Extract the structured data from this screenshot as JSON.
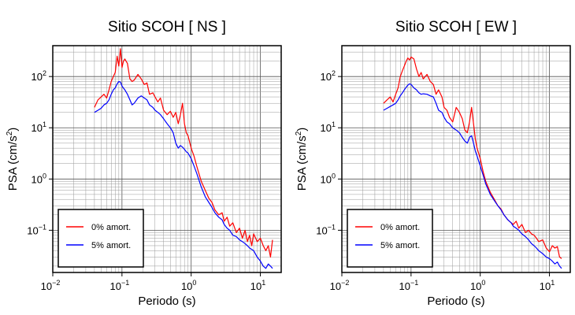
{
  "chart_data": [
    {
      "type": "line",
      "title": "Sitio SCOH [ NS ]",
      "xlabel": "Periodo (s)",
      "ylabel_main": "PSA (cm/s",
      "ylabel_sup": "2",
      "ylabel_tail": ")",
      "xscale": "log",
      "yscale": "log",
      "xlim": [
        0.01,
        20
      ],
      "ylim": [
        0.015,
        400
      ],
      "grid": true,
      "legend_position": "bottom-left",
      "x_ticks": [
        {
          "value": 0.01,
          "base": "10",
          "exp": "−2"
        },
        {
          "value": 0.1,
          "base": "10",
          "exp": "−1"
        },
        {
          "value": 1,
          "base": "10",
          "exp": "0"
        },
        {
          "value": 10,
          "base": "10",
          "exp": "1"
        }
      ],
      "y_ticks": [
        {
          "value": 0.1,
          "base": "10",
          "exp": "−1"
        },
        {
          "value": 1,
          "base": "10",
          "exp": "0"
        },
        {
          "value": 10,
          "base": "10",
          "exp": "1"
        },
        {
          "value": 100,
          "base": "10",
          "exp": "2"
        }
      ],
      "series": [
        {
          "name": "0% amort.",
          "color": "#ff0000",
          "x": [
            0.04,
            0.045,
            0.05,
            0.055,
            0.06,
            0.065,
            0.07,
            0.075,
            0.08,
            0.085,
            0.09,
            0.095,
            0.1,
            0.105,
            0.11,
            0.12,
            0.13,
            0.14,
            0.15,
            0.17,
            0.19,
            0.21,
            0.23,
            0.25,
            0.28,
            0.3,
            0.33,
            0.36,
            0.4,
            0.45,
            0.5,
            0.55,
            0.6,
            0.65,
            0.7,
            0.75,
            0.8,
            0.85,
            0.9,
            1.0,
            1.1,
            1.2,
            1.4,
            1.6,
            1.8,
            2.0,
            2.2,
            2.5,
            2.8,
            3.0,
            3.3,
            3.6,
            4.0,
            4.5,
            5.0,
            5.5,
            6.0,
            6.5,
            7.0,
            7.5,
            8.0,
            9.0,
            10.0,
            11.0,
            12.0,
            13.0,
            14.0,
            15.0
          ],
          "y": [
            25,
            35,
            40,
            45,
            38,
            55,
            80,
            100,
            120,
            250,
            160,
            350,
            150,
            200,
            220,
            180,
            90,
            80,
            85,
            110,
            90,
            70,
            75,
            45,
            48,
            40,
            32,
            38,
            22,
            18,
            21,
            16,
            20,
            12,
            18,
            30,
            12,
            8,
            7,
            4,
            2.8,
            1.8,
            0.9,
            0.6,
            0.42,
            0.35,
            0.25,
            0.2,
            0.22,
            0.15,
            0.18,
            0.12,
            0.14,
            0.09,
            0.11,
            0.07,
            0.1,
            0.06,
            0.08,
            0.05,
            0.085,
            0.06,
            0.07,
            0.05,
            0.04,
            0.05,
            0.03,
            0.065
          ]
        },
        {
          "name": "5% amort.",
          "color": "#0000ff",
          "x": [
            0.04,
            0.045,
            0.05,
            0.055,
            0.06,
            0.065,
            0.07,
            0.075,
            0.08,
            0.085,
            0.09,
            0.095,
            0.1,
            0.11,
            0.12,
            0.13,
            0.14,
            0.15,
            0.17,
            0.19,
            0.21,
            0.23,
            0.25,
            0.28,
            0.3,
            0.33,
            0.36,
            0.4,
            0.45,
            0.5,
            0.55,
            0.6,
            0.65,
            0.7,
            0.75,
            0.8,
            0.85,
            0.9,
            1.0,
            1.1,
            1.2,
            1.4,
            1.6,
            1.8,
            2.0,
            2.2,
            2.5,
            2.8,
            3.0,
            3.3,
            3.6,
            4.0,
            4.5,
            5.0,
            5.5,
            6.0,
            6.5,
            7.0,
            8.0,
            9.0,
            10.0,
            11.0,
            12.0,
            13.0,
            14.0,
            15.0
          ],
          "y": [
            20,
            22,
            24,
            28,
            30,
            35,
            45,
            55,
            60,
            72,
            80,
            78,
            65,
            55,
            45,
            35,
            28,
            30,
            38,
            42,
            38,
            35,
            28,
            25,
            22,
            20,
            18,
            15,
            12,
            10,
            8,
            5,
            4,
            4.5,
            4.2,
            3.8,
            3.4,
            3.2,
            2.5,
            1.8,
            1.3,
            0.7,
            0.45,
            0.35,
            0.28,
            0.22,
            0.18,
            0.16,
            0.13,
            0.11,
            0.1,
            0.08,
            0.075,
            0.065,
            0.06,
            0.055,
            0.05,
            0.045,
            0.04,
            0.03,
            0.025,
            0.02,
            0.018,
            0.022,
            0.02,
            0.018
          ]
        }
      ]
    },
    {
      "type": "line",
      "title": "Sitio SCOH [ EW ]",
      "xlabel": "Periodo (s)",
      "ylabel_main": "PSA (cm/s",
      "ylabel_sup": "2",
      "ylabel_tail": ")",
      "xscale": "log",
      "yscale": "log",
      "xlim": [
        0.01,
        20
      ],
      "ylim": [
        0.015,
        400
      ],
      "grid": true,
      "legend_position": "bottom-left",
      "x_ticks": [
        {
          "value": 0.01,
          "base": "10",
          "exp": "−2"
        },
        {
          "value": 0.1,
          "base": "10",
          "exp": "−1"
        },
        {
          "value": 1,
          "base": "10",
          "exp": "0"
        },
        {
          "value": 10,
          "base": "10",
          "exp": "1"
        }
      ],
      "y_ticks": [
        {
          "value": 0.1,
          "base": "10",
          "exp": "−1"
        },
        {
          "value": 1,
          "base": "10",
          "exp": "0"
        },
        {
          "value": 10,
          "base": "10",
          "exp": "1"
        },
        {
          "value": 100,
          "base": "10",
          "exp": "2"
        }
      ],
      "series": [
        {
          "name": "0% amort.",
          "color": "#ff0000",
          "x": [
            0.04,
            0.045,
            0.05,
            0.055,
            0.06,
            0.065,
            0.07,
            0.075,
            0.08,
            0.085,
            0.09,
            0.095,
            0.1,
            0.11,
            0.12,
            0.13,
            0.14,
            0.15,
            0.17,
            0.19,
            0.21,
            0.23,
            0.25,
            0.28,
            0.3,
            0.33,
            0.36,
            0.4,
            0.45,
            0.5,
            0.55,
            0.6,
            0.65,
            0.7,
            0.75,
            0.8,
            0.85,
            0.9,
            1.0,
            1.1,
            1.2,
            1.4,
            1.6,
            1.8,
            2.0,
            2.2,
            2.5,
            2.8,
            3.0,
            3.3,
            3.6,
            4.0,
            4.5,
            5.0,
            5.5,
            6.0,
            6.5,
            7.0,
            8.0,
            9.0,
            10.0,
            11.0,
            12.0,
            13.0,
            14.0,
            15.0
          ],
          "y": [
            30,
            35,
            40,
            32,
            45,
            60,
            100,
            130,
            160,
            200,
            230,
            210,
            240,
            220,
            140,
            100,
            120,
            90,
            110,
            80,
            70,
            45,
            55,
            40,
            25,
            22,
            16,
            13,
            25,
            20,
            15,
            9,
            8,
            13,
            25,
            12,
            6,
            4,
            2.5,
            1.4,
            0.9,
            0.55,
            0.4,
            0.3,
            0.26,
            0.2,
            0.16,
            0.14,
            0.13,
            0.15,
            0.11,
            0.13,
            0.09,
            0.1,
            0.085,
            0.08,
            0.07,
            0.06,
            0.065,
            0.045,
            0.038,
            0.05,
            0.045,
            0.048,
            0.03,
            0.028
          ]
        },
        {
          "name": "5% amort.",
          "color": "#0000ff",
          "x": [
            0.04,
            0.045,
            0.05,
            0.055,
            0.06,
            0.065,
            0.07,
            0.075,
            0.08,
            0.085,
            0.09,
            0.095,
            0.1,
            0.11,
            0.12,
            0.13,
            0.14,
            0.15,
            0.17,
            0.19,
            0.21,
            0.23,
            0.25,
            0.28,
            0.3,
            0.33,
            0.36,
            0.4,
            0.45,
            0.5,
            0.55,
            0.6,
            0.65,
            0.7,
            0.75,
            0.8,
            0.85,
            0.9,
            1.0,
            1.1,
            1.2,
            1.4,
            1.6,
            1.8,
            2.0,
            2.2,
            2.5,
            2.8,
            3.0,
            3.3,
            3.6,
            4.0,
            4.5,
            5.0,
            5.5,
            6.0,
            6.5,
            7.0,
            8.0,
            9.0,
            10.0,
            11.0,
            12.0,
            13.0,
            14.0,
            15.0
          ],
          "y": [
            22,
            24,
            26,
            28,
            30,
            35,
            42,
            48,
            55,
            62,
            68,
            72,
            70,
            60,
            55,
            48,
            45,
            46,
            45,
            42,
            40,
            30,
            22,
            20,
            16,
            13,
            12,
            10,
            9,
            8,
            6.5,
            5.5,
            5,
            6.5,
            7,
            5,
            3.5,
            2.8,
            1.8,
            1.2,
            0.8,
            0.5,
            0.38,
            0.3,
            0.25,
            0.2,
            0.16,
            0.14,
            0.12,
            0.11,
            0.1,
            0.085,
            0.075,
            0.065,
            0.055,
            0.05,
            0.045,
            0.04,
            0.035,
            0.03,
            0.028,
            0.025,
            0.022,
            0.024,
            0.02,
            0.018
          ]
        }
      ]
    }
  ]
}
